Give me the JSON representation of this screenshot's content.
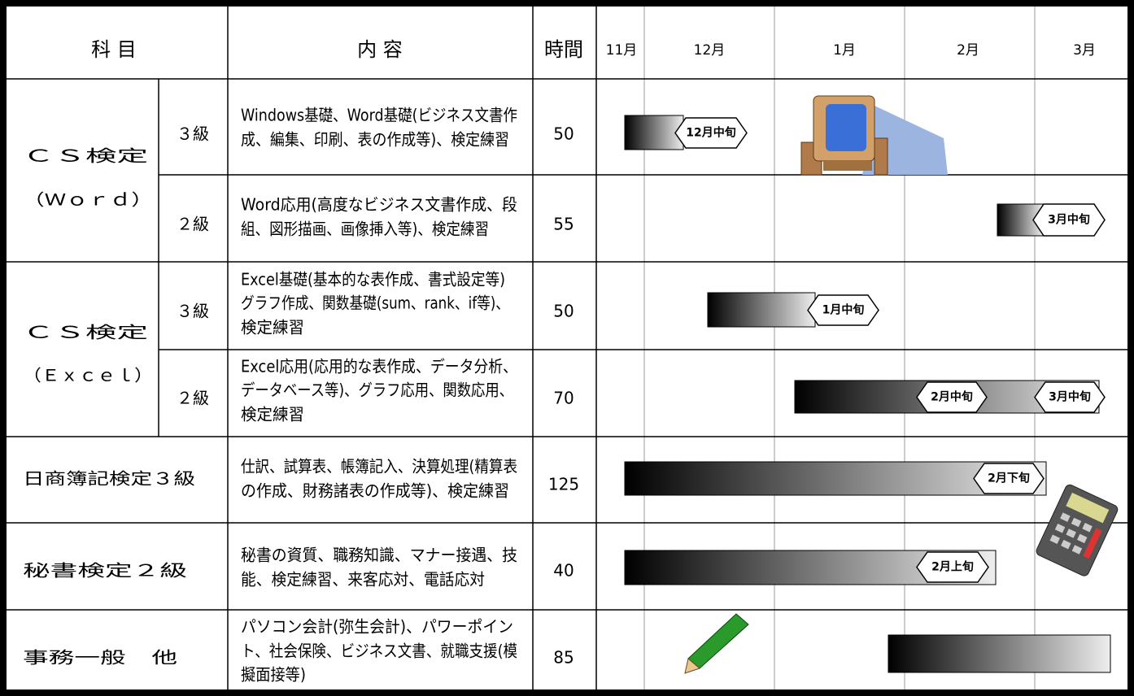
{
  "header": {
    "subject": "科 目",
    "content": "内 容",
    "hours": "時間",
    "months": [
      "11月",
      "12月",
      "1月",
      "2月",
      "3月"
    ]
  },
  "rows": [
    {
      "subject": [
        "ＣＳ検定",
        "（Ｗｏｒｄ）"
      ],
      "level": "３級",
      "content": [
        "Windows基礎、Word基礎(ビジネス文書作",
        "成、編集、印刷、表の作成等)、検定練習"
      ],
      "hours": "50",
      "labels": [
        "12月中旬"
      ]
    },
    {
      "level": "２級",
      "content": [
        "Word応用(高度なビジネス文書作成、段",
        "組、図形描画、画像挿入等)、検定練習"
      ],
      "hours": "55",
      "labels": [
        "3月中旬"
      ]
    },
    {
      "subject": [
        "ＣＳ検定",
        "（Ｅｘｃｅｌ）"
      ],
      "level": "３級",
      "content": [
        "Excel基礎(基本的な表作成、書式設定等)",
        "グラフ作成、関数基礎(sum、rank、if等)、",
        "検定練習"
      ],
      "hours": "50",
      "labels": [
        "1月中旬"
      ]
    },
    {
      "level": "２級",
      "content": [
        "Excel応用(応用的な表作成、データ分析、",
        "データベース等)、グラフ応用、関数応用、",
        "検定練習"
      ],
      "hours": "70",
      "labels": [
        "2月中旬",
        "3月中旬"
      ]
    },
    {
      "subject": [
        "日商簿記検定３級"
      ],
      "content": [
        "仕訳、試算表、帳簿記入、決算処理(精算表",
        "の作成、財務諸表の作成等)、検定練習"
      ],
      "hours": "125",
      "labels": [
        "2月下旬"
      ]
    },
    {
      "subject": [
        "秘書検定２級"
      ],
      "content": [
        "秘書の資質、職務知識、マナー接遇、技",
        "能、検定練習、来客応対、電話応対"
      ],
      "hours": "40",
      "labels": [
        "2月上旬"
      ]
    },
    {
      "subject": [
        "事務一般　他"
      ],
      "content": [
        "パソコン会計(弥生会計)、パワーポイン",
        "ト、社会保険、ビジネス文書、就職支援(模",
        "擬面接等)"
      ],
      "hours": "85",
      "labels": []
    }
  ]
}
